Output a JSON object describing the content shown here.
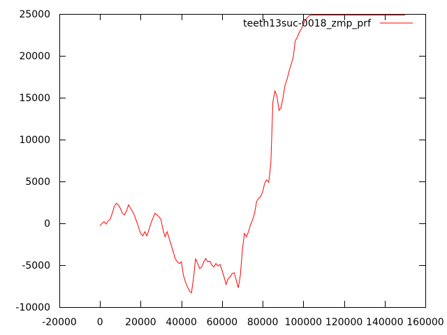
{
  "chart_data": {
    "type": "line",
    "xlim": [
      -20000,
      160000
    ],
    "ylim": [
      -10000,
      25000
    ],
    "x_ticks": [
      -20000,
      0,
      20000,
      40000,
      60000,
      80000,
      100000,
      120000,
      140000,
      160000
    ],
    "y_ticks": [
      -10000,
      -5000,
      0,
      5000,
      10000,
      15000,
      20000,
      25000
    ],
    "x_tick_labels": [
      "-20000",
      "0",
      "20000",
      "40000",
      "60000",
      "80000",
      "100000",
      "120000",
      "140000",
      "160000"
    ],
    "y_tick_labels": [
      "-10000",
      "-5000",
      "0",
      "5000",
      "10000",
      "15000",
      "20000",
      "25000"
    ],
    "legend_position": "top-right",
    "grid": false,
    "series": [
      {
        "name": "teeth13suc-0018_zmp_prf",
        "color": "#ff0000",
        "x": [
          0,
          1000,
          2000,
          3000,
          4000,
          5000,
          6000,
          7000,
          8000,
          9000,
          10000,
          11000,
          12000,
          13000,
          14000,
          15000,
          16000,
          17000,
          18000,
          19000,
          20000,
          21000,
          22000,
          23000,
          24000,
          25000,
          26000,
          27000,
          28000,
          29000,
          30000,
          31000,
          32000,
          33000,
          34000,
          35000,
          36000,
          37000,
          38000,
          39000,
          40000,
          41000,
          42000,
          43000,
          44000,
          45000,
          46000,
          47000,
          48000,
          49000,
          50000,
          51000,
          52000,
          53000,
          54000,
          55000,
          56000,
          57000,
          58000,
          59000,
          60000,
          61000,
          62000,
          63000,
          64000,
          65000,
          66000,
          67000,
          68000,
          69000,
          70000,
          71000,
          72000,
          73000,
          74000,
          75000,
          76000,
          77000,
          78000,
          79000,
          80000,
          81000,
          82000,
          83000,
          84000,
          85000,
          86000,
          87000,
          88000,
          89000,
          90000,
          91000,
          92000,
          93000,
          94000,
          95000,
          96000,
          97000,
          98000,
          99000,
          100000,
          101000,
          102000,
          103000,
          104000,
          105000,
          110000,
          120000,
          130000,
          140000,
          150000
        ],
        "y": [
          -300,
          0,
          200,
          -100,
          300,
          500,
          1200,
          2000,
          2400,
          2200,
          1800,
          1200,
          1000,
          1500,
          2200,
          1800,
          1400,
          900,
          200,
          -500,
          -1200,
          -1500,
          -1000,
          -1500,
          -800,
          0,
          600,
          1200,
          1000,
          800,
          400,
          -800,
          -1600,
          -1000,
          -1800,
          -2600,
          -3400,
          -4200,
          -4600,
          -4800,
          -4600,
          -6200,
          -7000,
          -7600,
          -8100,
          -8300,
          -6500,
          -4200,
          -4800,
          -5400,
          -5200,
          -4600,
          -4200,
          -4600,
          -4500,
          -5000,
          -5200,
          -4800,
          -5100,
          -4900,
          -5600,
          -6400,
          -7300,
          -6600,
          -6400,
          -6000,
          -5900,
          -6800,
          -7700,
          -6200,
          -3200,
          -1200,
          -1600,
          -1000,
          -200,
          400,
          1200,
          2600,
          3000,
          3200,
          3800,
          4800,
          5200,
          4900,
          7200,
          14500,
          15800,
          15200,
          13500,
          13800,
          15000,
          16500,
          17200,
          18200,
          19000,
          19800,
          21800,
          22200,
          22800,
          23200,
          23800,
          24300,
          24600,
          24800,
          24850,
          24850,
          24850,
          24850,
          24850,
          24850,
          24850
        ]
      }
    ]
  }
}
